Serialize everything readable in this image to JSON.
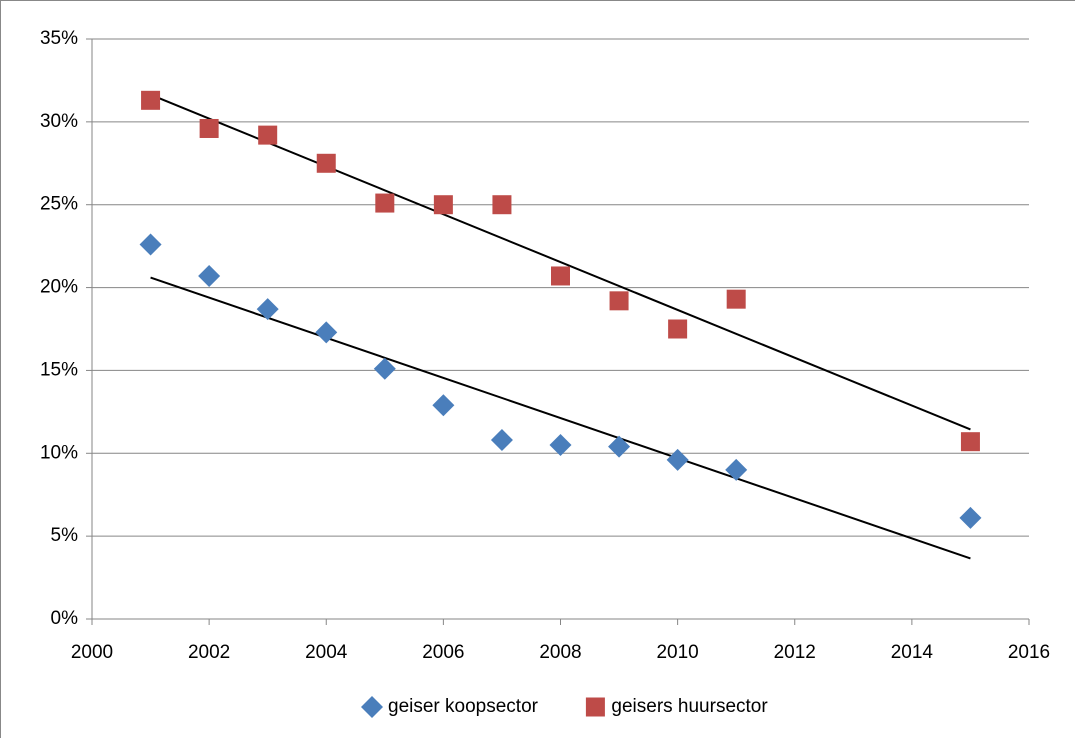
{
  "chart_data": {
    "type": "scatter",
    "series": [
      {
        "name": "geiser koopsector",
        "color": "#4a7ebb",
        "marker": "diamond",
        "x": [
          2001,
          2002,
          2003,
          2004,
          2005,
          2006,
          2007,
          2008,
          2009,
          2010,
          2011,
          2015
        ],
        "values": [
          22.6,
          20.7,
          18.7,
          17.3,
          15.1,
          12.9,
          10.8,
          10.5,
          10.4,
          9.6,
          9.0,
          6.1
        ]
      },
      {
        "name": "geisers huursector",
        "color": "#be4b48",
        "marker": "square",
        "x": [
          2001,
          2002,
          2003,
          2004,
          2005,
          2006,
          2007,
          2008,
          2009,
          2010,
          2011,
          2015
        ],
        "values": [
          31.3,
          29.6,
          29.2,
          27.5,
          25.1,
          25.0,
          25.0,
          20.7,
          19.2,
          17.5,
          19.3,
          10.7
        ]
      }
    ],
    "xlim": [
      2000,
      2016
    ],
    "xticks": [
      2000,
      2002,
      2004,
      2006,
      2008,
      2010,
      2012,
      2014,
      2016
    ],
    "ylim": [
      0,
      35
    ],
    "yticks": [
      {
        "value": 0,
        "label": "0%"
      },
      {
        "value": 5,
        "label": "5%"
      },
      {
        "value": 10,
        "label": "10%"
      },
      {
        "value": 15,
        "label": "15%"
      },
      {
        "value": 20,
        "label": "20%"
      },
      {
        "value": 25,
        "label": "25%"
      },
      {
        "value": 30,
        "label": "30%"
      },
      {
        "value": 35,
        "label": "35%"
      }
    ],
    "grid": true,
    "trendline": true,
    "legend": "bottom"
  }
}
